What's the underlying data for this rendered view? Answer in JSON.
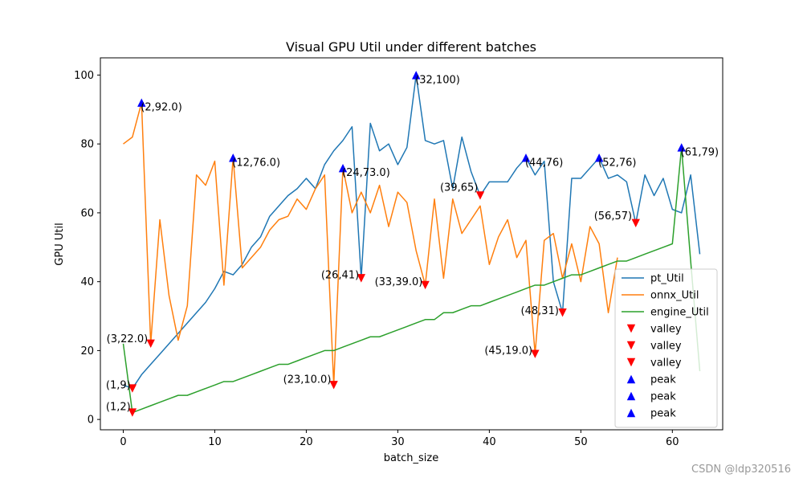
{
  "chart_data": {
    "type": "line",
    "title": "Visual GPU Util under different batches",
    "xlabel": "batch_size",
    "ylabel": "GPU Util",
    "xlim": [
      -2.5,
      65.5
    ],
    "ylim": [
      -3,
      105
    ],
    "xticks": [
      0,
      10,
      20,
      30,
      40,
      50,
      60
    ],
    "yticks": [
      0,
      20,
      40,
      60,
      80,
      100
    ],
    "grid": false,
    "legend_position": "lower-right",
    "series": [
      {
        "name": "pt_Util",
        "color": "#1f77b4",
        "x": [
          0,
          1,
          2,
          3,
          4,
          5,
          6,
          7,
          8,
          9,
          10,
          11,
          12,
          13,
          14,
          15,
          16,
          17,
          18,
          19,
          20,
          21,
          22,
          23,
          24,
          25,
          26,
          27,
          28,
          29,
          30,
          31,
          32,
          33,
          34,
          35,
          36,
          37,
          38,
          39,
          40,
          41,
          42,
          43,
          44,
          45,
          46,
          47,
          48,
          49,
          50,
          51,
          52,
          53,
          54,
          55,
          56,
          57,
          58,
          59,
          60,
          61,
          62,
          63
        ],
        "y": [
          10,
          9,
          13,
          16,
          19,
          22,
          25,
          28,
          31,
          34,
          38,
          43,
          42,
          45,
          50,
          53,
          59,
          62,
          65,
          67,
          70,
          67,
          74,
          78,
          81,
          85,
          41,
          86,
          78,
          80,
          74,
          79,
          100,
          81,
          80,
          81,
          67,
          82,
          72,
          65,
          69,
          69,
          69,
          73,
          76,
          71,
          75,
          40,
          31,
          70,
          70,
          73,
          76,
          70,
          71,
          69,
          57,
          71,
          65,
          70,
          61,
          60,
          71,
          48
        ]
      },
      {
        "name": "onnx_Util",
        "color": "#ff7f0e",
        "x": [
          0,
          1,
          2,
          3,
          4,
          5,
          6,
          7,
          8,
          9,
          10,
          11,
          12,
          13,
          14,
          15,
          16,
          17,
          18,
          19,
          20,
          21,
          22,
          23,
          24,
          25,
          26,
          27,
          28,
          29,
          30,
          31,
          32,
          33,
          34,
          35,
          36,
          37,
          38,
          39,
          40,
          41,
          42,
          43,
          44,
          45,
          46,
          47,
          48,
          49,
          50,
          51,
          52,
          53,
          54
        ],
        "y": [
          80,
          82,
          92,
          22,
          58,
          36,
          23,
          33,
          71,
          68,
          75,
          39,
          76,
          44,
          47,
          50,
          55,
          58,
          59,
          64,
          61,
          67,
          71,
          10,
          73,
          60,
          66,
          60,
          68,
          56,
          66,
          63,
          49,
          39,
          64,
          41,
          64,
          54,
          58,
          62,
          45,
          53,
          58,
          47,
          52,
          19,
          52,
          54,
          41,
          51,
          40,
          56,
          51,
          31,
          47
        ]
      },
      {
        "name": "engine_Util",
        "color": "#2ca02c",
        "x": [
          0,
          1,
          2,
          3,
          4,
          5,
          6,
          7,
          8,
          9,
          10,
          11,
          12,
          13,
          14,
          15,
          16,
          17,
          18,
          19,
          20,
          21,
          22,
          23,
          24,
          25,
          26,
          27,
          28,
          29,
          30,
          31,
          32,
          33,
          34,
          35,
          36,
          37,
          38,
          39,
          40,
          41,
          42,
          43,
          44,
          45,
          46,
          47,
          48,
          49,
          50,
          51,
          52,
          53,
          54,
          55,
          56,
          57,
          58,
          59,
          60,
          61,
          62,
          63
        ],
        "y": [
          22,
          2,
          3,
          4,
          5,
          6,
          7,
          7,
          8,
          9,
          10,
          11,
          11,
          12,
          13,
          14,
          15,
          16,
          16,
          17,
          18,
          19,
          20,
          20,
          21,
          22,
          23,
          24,
          24,
          25,
          26,
          27,
          28,
          29,
          29,
          31,
          31,
          32,
          33,
          33,
          34,
          35,
          36,
          37,
          38,
          39,
          39,
          40,
          41,
          42,
          42,
          43,
          44,
          45,
          46,
          46,
          47,
          48,
          49,
          50,
          51,
          79,
          46,
          14
        ]
      }
    ],
    "valleys": [
      {
        "x": 1,
        "y": 9,
        "label": "(1,9)"
      },
      {
        "x": 26,
        "y": 41,
        "label": "(26,41)"
      },
      {
        "x": 39,
        "y": 65,
        "label": "(39,65)"
      },
      {
        "x": 48,
        "y": 31,
        "label": "(48,31)"
      },
      {
        "x": 56,
        "y": 57,
        "label": "(56,57)"
      },
      {
        "x": 3,
        "y": 22,
        "label": "(3,22.0)"
      },
      {
        "x": 23,
        "y": 10,
        "label": "(23,10.0)"
      },
      {
        "x": 33,
        "y": 39,
        "label": "(33,39.0)"
      },
      {
        "x": 45,
        "y": 19,
        "label": "(45,19.0)"
      },
      {
        "x": 1,
        "y": 2,
        "label": "(1,2)"
      }
    ],
    "peaks": [
      {
        "x": 32,
        "y": 100,
        "label": "(32,100)"
      },
      {
        "x": 44,
        "y": 76,
        "label": "(44,76)"
      },
      {
        "x": 52,
        "y": 76,
        "label": "(52,76)"
      },
      {
        "x": 2,
        "y": 92,
        "label": "(2,92.0)"
      },
      {
        "x": 12,
        "y": 76,
        "label": "(12,76.0)"
      },
      {
        "x": 24,
        "y": 73,
        "label": "(24,73.0)"
      },
      {
        "x": 61,
        "y": 79,
        "label": "(61,79)"
      }
    ],
    "legend": [
      {
        "label": "pt_Util",
        "kind": "line",
        "color": "#1f77b4"
      },
      {
        "label": "onnx_Util",
        "kind": "line",
        "color": "#ff7f0e"
      },
      {
        "label": "engine_Util",
        "kind": "line",
        "color": "#2ca02c"
      },
      {
        "label": "valley",
        "kind": "valley",
        "color": "#ff0000"
      },
      {
        "label": "valley",
        "kind": "valley",
        "color": "#ff0000"
      },
      {
        "label": "valley",
        "kind": "valley",
        "color": "#ff0000"
      },
      {
        "label": "peak",
        "kind": "peak",
        "color": "#0000ff"
      },
      {
        "label": "peak",
        "kind": "peak",
        "color": "#0000ff"
      },
      {
        "label": "peak",
        "kind": "peak",
        "color": "#0000ff"
      }
    ]
  },
  "watermark": "CSDN @ldp320516"
}
